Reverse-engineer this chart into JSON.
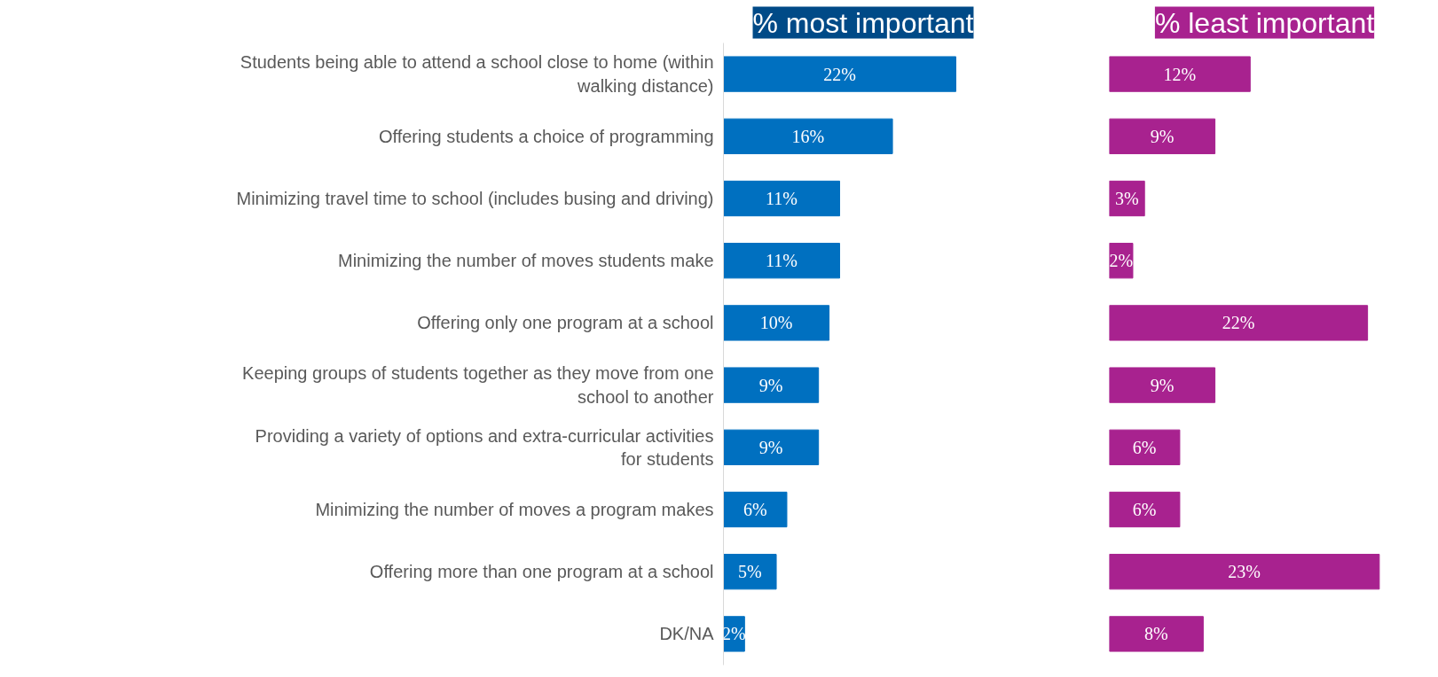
{
  "chart_data": [
    {
      "type": "bar",
      "orientation": "horizontal",
      "title": "% most important",
      "categories": [
        "Students being able to attend a school close to home (within walking distance)",
        "Offering students a choice of programming",
        "Minimizing travel time to school (includes busing and driving)",
        "Minimizing the number of moves students make",
        "Offering only one program at a school",
        "Keeping groups of students together as they move from one school to another",
        "Providing a variety of options and extra-curricular activities for students",
        "Minimizing the number of moves a program makes",
        "Offering more than one program at a school",
        "DK/NA"
      ],
      "values": [
        22,
        16,
        11,
        11,
        10,
        9,
        9,
        6,
        5,
        2
      ],
      "value_labels": [
        "22%",
        "16%",
        "11%",
        "11%",
        "10%",
        "9%",
        "9%",
        "6%",
        "5%",
        "2%"
      ],
      "color": "#0070c0",
      "tick_labels": "y",
      "grid": false
    },
    {
      "type": "bar",
      "orientation": "horizontal",
      "title": "% least important",
      "categories": [
        "Students being able to attend a school close to home (within walking distance)",
        "Offering students a choice of programming",
        "Minimizing travel time to school (includes busing and driving)",
        "Minimizing the number of moves students make",
        "Offering only one program at a school",
        "Keeping groups of students together as they move from one school to another",
        "Providing a variety of options and extra-curricular activities for students",
        "Minimizing the number of moves a program makes",
        "Offering more than one program at a school",
        "DK/NA"
      ],
      "values": [
        12,
        9,
        3,
        2,
        22,
        9,
        6,
        6,
        23,
        8
      ],
      "value_labels": [
        "12%",
        "9%",
        "3%",
        "2%",
        "22%",
        "9%",
        "6%",
        "6%",
        "23%",
        "8%"
      ],
      "color": "#a8228f",
      "tick_labels": false,
      "grid": false
    }
  ]
}
